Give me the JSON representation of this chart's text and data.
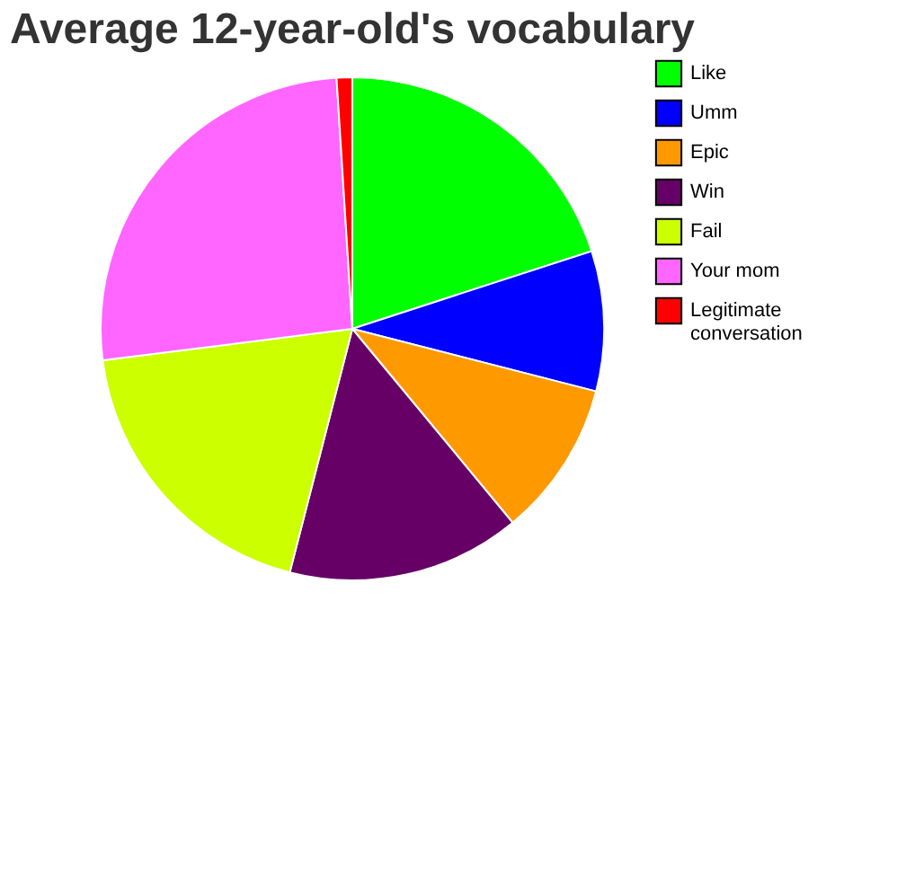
{
  "chart_data": {
    "type": "pie",
    "title": "Average 12-year-old's vocabulary",
    "categories": [
      "Like",
      "Umm",
      "Epic",
      "Win",
      "Fail",
      "Your mom",
      "Legitimate conversation"
    ],
    "values": [
      20,
      9,
      10,
      15,
      19,
      26,
      1
    ],
    "colors": [
      "#00ff00",
      "#0000ff",
      "#ff9900",
      "#660066",
      "#ccff00",
      "#ff66ff",
      "#ff0000"
    ],
    "legend": "right"
  }
}
